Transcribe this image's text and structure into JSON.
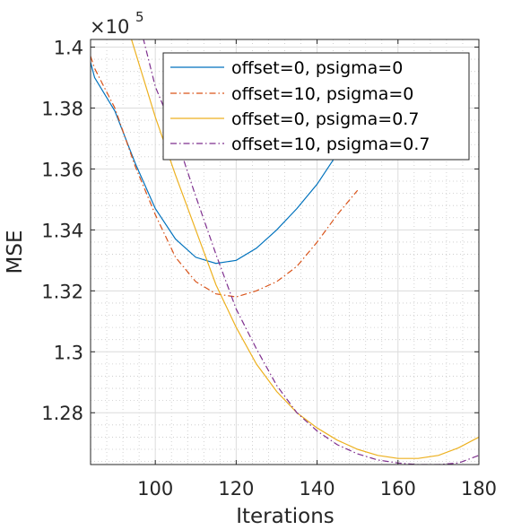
{
  "chart_data": {
    "type": "line",
    "xlabel": "Iterations",
    "ylabel": "MSE",
    "xlim": [
      84,
      180
    ],
    "ylim": [
      126300,
      140250
    ],
    "y_multiplier_label": {
      "base": "×10",
      "exponent": "5"
    },
    "x_ticks": [
      100,
      120,
      140,
      160,
      180
    ],
    "x_tick_labels": [
      "100",
      "120",
      "140",
      "160",
      "180"
    ],
    "y_ticks": [
      128000,
      130000,
      132000,
      134000,
      136000,
      138000,
      140000
    ],
    "y_tick_labels": [
      "1.28",
      "1.3",
      "1.32",
      "1.34",
      "1.36",
      "1.38",
      "1.4"
    ],
    "grid": true,
    "minor_grid": true,
    "legend_position": "top-right",
    "series": [
      {
        "name": "offset=0, psigma=0",
        "color": "#0072BD",
        "style": "solid",
        "x": [
          84,
          85,
          90,
          95,
          100,
          105,
          110,
          115,
          120,
          125,
          130,
          135,
          140,
          145,
          150
        ],
        "y": [
          139500,
          139000,
          137900,
          136200,
          134700,
          133700,
          133100,
          132900,
          133000,
          133400,
          134000,
          134700,
          135500,
          136500,
          137500
        ]
      },
      {
        "name": "offset=10, psigma=0",
        "color": "#D95319",
        "style": "dashdot",
        "x": [
          84,
          85,
          90,
          95,
          100,
          105,
          110,
          115,
          120,
          125,
          130,
          135,
          140,
          145,
          150
        ],
        "y": [
          139700,
          139300,
          138000,
          136100,
          134500,
          133100,
          132300,
          131900,
          131800,
          132000,
          132300,
          132800,
          133600,
          134500,
          135300
        ]
      },
      {
        "name": "offset=0, psigma=0.7",
        "color": "#EDB120",
        "style": "solid",
        "x": [
          94,
          100,
          105,
          110,
          115,
          120,
          125,
          130,
          135,
          140,
          145,
          150,
          155,
          160,
          165,
          170,
          175,
          180
        ],
        "y": [
          140300,
          137700,
          135800,
          134000,
          132200,
          130800,
          129600,
          128700,
          128000,
          127500,
          127100,
          126800,
          126600,
          126500,
          126500,
          126600,
          126850,
          127200
        ]
      },
      {
        "name": "offset=10, psigma=0.7",
        "color": "#7E2F8E",
        "style": "dashdot",
        "x": [
          97,
          100,
          105,
          110,
          115,
          120,
          125,
          130,
          135,
          140,
          145,
          150,
          155,
          160,
          165,
          170,
          175,
          180
        ],
        "y": [
          140300,
          138700,
          137100,
          135100,
          133200,
          131400,
          130100,
          128900,
          128000,
          127400,
          126950,
          126650,
          126450,
          126350,
          126300,
          126300,
          126350,
          126600
        ]
      }
    ]
  }
}
